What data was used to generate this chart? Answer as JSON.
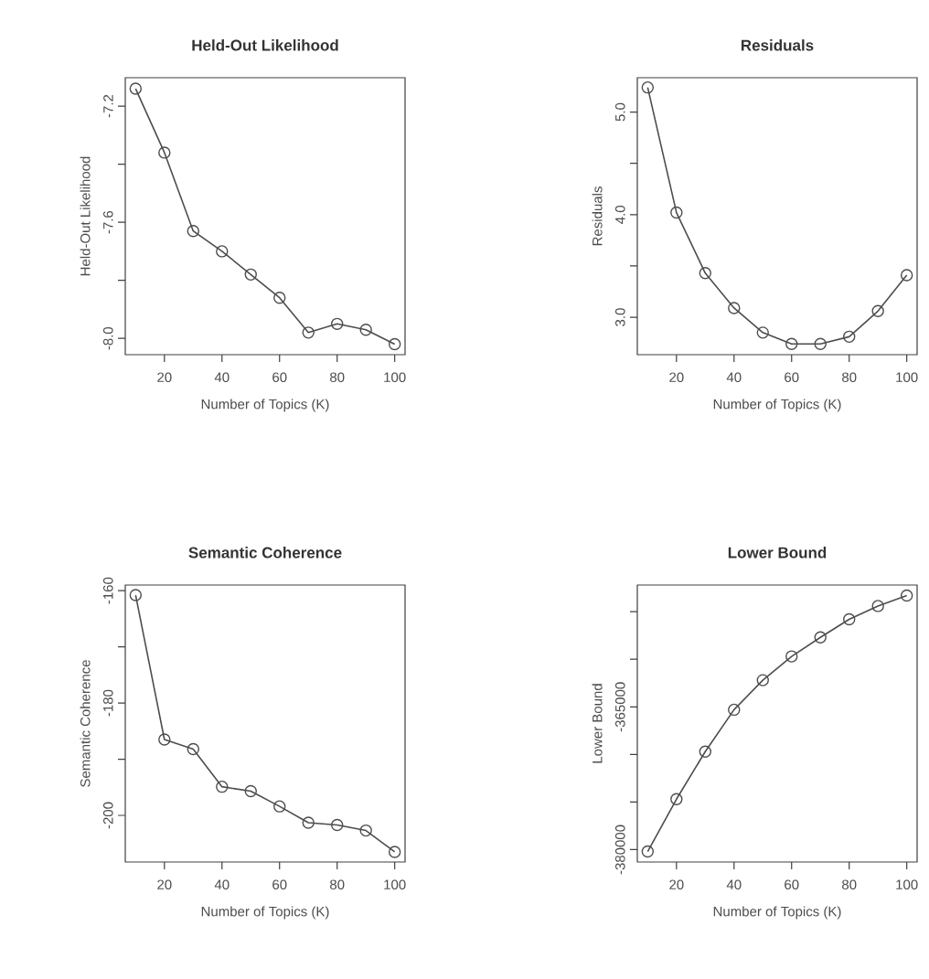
{
  "chart_data": [
    {
      "type": "line",
      "title": "Held-Out Likelihood",
      "xlabel": "Number of Topics (K)",
      "ylabel": "Held-Out Likelihood",
      "x": [
        10,
        20,
        30,
        40,
        50,
        60,
        70,
        80,
        90,
        100
      ],
      "series": [
        {
          "color": "#4d4d4d",
          "values": [
            -7.14,
            -7.36,
            -7.63,
            -7.7,
            -7.78,
            -7.86,
            -7.98,
            -7.95,
            -7.97,
            -8.02
          ]
        }
      ],
      "xlim": [
        6.4,
        103.6
      ],
      "xticks": [
        20,
        40,
        60,
        80,
        100
      ],
      "ylim": [
        -8.056,
        -7.102
      ],
      "yticks": [
        {
          "value": -8.0,
          "label": "-8.0"
        },
        {
          "value": -7.8,
          "label": null
        },
        {
          "value": -7.6,
          "label": "-7.6"
        },
        {
          "value": -7.4,
          "label": null
        },
        {
          "value": -7.2,
          "label": "-7.2"
        }
      ],
      "marker": "circle"
    },
    {
      "type": "line",
      "title": "Residuals",
      "xlabel": "Number of Topics (K)",
      "ylabel": "Residuals",
      "x": [
        10,
        20,
        30,
        40,
        50,
        60,
        70,
        80,
        90,
        100
      ],
      "series": [
        {
          "color": "#4d4d4d",
          "values": [
            5.24,
            4.02,
            3.43,
            3.09,
            2.85,
            2.74,
            2.74,
            2.81,
            3.06,
            3.41
          ]
        }
      ],
      "xlim": [
        6.4,
        103.6
      ],
      "xticks": [
        20,
        40,
        60,
        80,
        100
      ],
      "ylim": [
        2.635,
        5.335
      ],
      "yticks": [
        {
          "value": 3.0,
          "label": "3.0"
        },
        {
          "value": 3.5,
          "label": null
        },
        {
          "value": 4.0,
          "label": "4.0"
        },
        {
          "value": 4.5,
          "label": null
        },
        {
          "value": 5.0,
          "label": "5.0"
        }
      ],
      "marker": "circle"
    },
    {
      "type": "line",
      "title": "Semantic Coherence",
      "xlabel": "Number of Topics (K)",
      "ylabel": "Semantic Coherence",
      "x": [
        10,
        20,
        30,
        40,
        50,
        60,
        70,
        80,
        90,
        100
      ],
      "series": [
        {
          "color": "#4d4d4d",
          "values": [
            -160.8,
            -186.5,
            -188.2,
            -194.9,
            -195.7,
            -198.4,
            -201.3,
            -201.7,
            -202.7,
            -206.5
          ]
        }
      ],
      "xlim": [
        6.4,
        103.6
      ],
      "xticks": [
        20,
        40,
        60,
        80,
        100
      ],
      "ylim": [
        -208.3,
        -159.0
      ],
      "yticks": [
        -200,
        {
          "value": -190,
          "label": null
        },
        -180,
        {
          "value": -170,
          "label": null
        },
        -160
      ],
      "marker": "circle"
    },
    {
      "type": "line",
      "title": "Lower Bound",
      "xlabel": "Number of Topics (K)",
      "ylabel": "Lower Bound",
      "x": [
        10,
        20,
        30,
        40,
        50,
        60,
        70,
        80,
        90,
        100
      ],
      "series": [
        {
          "color": "#4d4d4d",
          "values": [
            -380200,
            -374700,
            -369700,
            -365300,
            -362200,
            -359700,
            -357700,
            -355800,
            -354400,
            -353300
          ]
        }
      ],
      "xlim": [
        6.4,
        103.6
      ],
      "xticks": [
        20,
        40,
        60,
        80,
        100
      ],
      "ylim": [
        -381300,
        -352200
      ],
      "yticks": [
        -380000,
        {
          "value": -375000,
          "label": null
        },
        {
          "value": -370000,
          "label": null
        },
        -365000,
        {
          "value": -360000,
          "label": null
        },
        {
          "value": -355000,
          "label": null
        }
      ],
      "marker": "circle"
    }
  ]
}
